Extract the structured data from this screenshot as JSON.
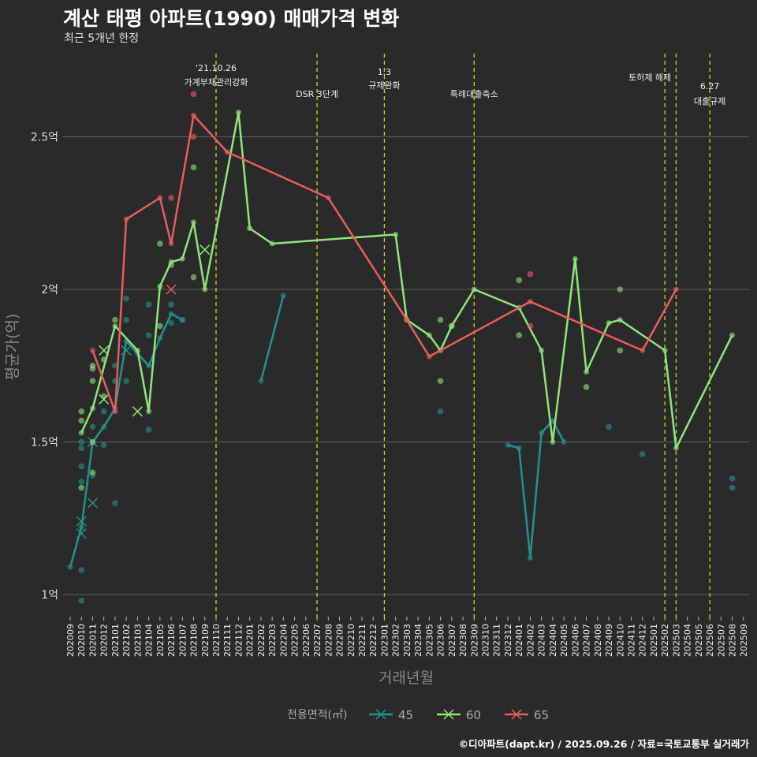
{
  "title": "계산 태평 아파트(1990) 매매가격 변화",
  "subtitle": "최근 5개년 한정",
  "caption": "©디아파트(dapt.kr) / 2025.09.26 / 자료=국토교통부 실거래가",
  "colors": {
    "45": "#23928c",
    "60": "#8ee57a",
    "65": "#ea5c5c",
    "grid": "#5e5e5e",
    "event": "#d4d41e",
    "background": "#2b2a2a"
  },
  "chart_data": {
    "type": "line",
    "title": "계산 태평 아파트(1990) 매매가격 변화",
    "xlabel": "거래년월",
    "ylabel": "평균가(억)",
    "ylim": [
      0.9,
      2.68
    ],
    "yticks": [
      {
        "v": 1,
        "label": "1억"
      },
      {
        "v": 1.5,
        "label": "1.5억"
      },
      {
        "v": 2,
        "label": "2억"
      },
      {
        "v": 2.5,
        "label": "2.5억"
      }
    ],
    "x": [
      "202009",
      "202010",
      "202011",
      "202012",
      "202101",
      "202102",
      "202103",
      "202104",
      "202105",
      "202106",
      "202107",
      "202108",
      "202109",
      "202110",
      "202111",
      "202112",
      "202201",
      "202202",
      "202203",
      "202204",
      "202205",
      "202206",
      "202207",
      "202208",
      "202209",
      "202210",
      "202211",
      "202212",
      "202301",
      "202302",
      "202303",
      "202304",
      "202305",
      "202306",
      "202307",
      "202308",
      "202309",
      "202310",
      "202311",
      "202312",
      "202401",
      "202402",
      "202403",
      "202404",
      "202405",
      "202406",
      "202407",
      "202408",
      "202409",
      "202410",
      "202411",
      "202412",
      "202501",
      "202502",
      "202503",
      "202504",
      "202505",
      "202506",
      "202507",
      "202508",
      "202509"
    ],
    "legend": {
      "title": "전용면적(㎡)",
      "position": "bottom"
    },
    "events": [
      {
        "month": "202110",
        "lines": [
          "'21.10.26",
          "가계부채관리강화"
        ]
      },
      {
        "month": "202207",
        "lines": [
          "DSR 3단계"
        ]
      },
      {
        "month": "202301",
        "lines": [
          "1.3",
          "규제완화"
        ]
      },
      {
        "month": "202309",
        "lines": [
          "특례대출축소"
        ]
      },
      {
        "month": "202502",
        "lines": [
          "토허제 해제"
        ]
      },
      {
        "month": "202503",
        "lines": []
      },
      {
        "month": "202506",
        "lines": [
          "6.27",
          "대출규제"
        ]
      }
    ],
    "series": [
      {
        "name": "45",
        "segments": [
          [
            [
              0,
              1.09
            ],
            [
              1,
              1.22
            ],
            [
              2,
              1.5
            ],
            [
              3,
              1.55
            ],
            [
              4,
              1.61
            ],
            [
              5,
              1.83
            ],
            [
              6,
              1.79
            ],
            [
              7,
              1.75
            ],
            [
              8,
              1.84
            ],
            [
              9,
              1.92
            ],
            [
              10,
              1.9
            ]
          ],
          [
            [
              17,
              1.7
            ],
            [
              19,
              1.98
            ]
          ],
          [
            [
              39,
              1.49
            ],
            [
              40,
              1.48
            ],
            [
              41,
              1.12
            ],
            [
              42,
              1.53
            ],
            [
              43,
              1.57
            ],
            [
              44,
              1.5
            ]
          ]
        ],
        "points": [
          [
            1,
            0.98
          ],
          [
            1,
            1.08
          ],
          [
            1,
            1.37
          ],
          [
            1,
            1.42
          ],
          [
            1,
            1.48
          ],
          [
            1,
            1.5
          ],
          [
            2,
            1.39
          ],
          [
            2,
            1.55
          ],
          [
            3,
            1.49
          ],
          [
            3,
            1.6
          ],
          [
            4,
            1.3
          ],
          [
            4,
            1.7
          ],
          [
            4,
            1.75
          ],
          [
            5,
            1.9
          ],
          [
            5,
            1.97
          ],
          [
            5,
            1.7
          ],
          [
            7,
            1.54
          ],
          [
            7,
            1.85
          ],
          [
            7,
            1.95
          ],
          [
            9,
            1.89
          ],
          [
            9,
            1.95
          ],
          [
            10,
            1.9
          ],
          [
            33,
            1.6
          ],
          [
            48,
            1.55
          ],
          [
            51,
            1.46
          ],
          [
            59,
            1.38
          ],
          [
            59,
            1.35
          ]
        ],
        "crosses": [
          [
            1,
            1.24
          ],
          [
            1,
            1.2
          ],
          [
            2,
            1.3
          ],
          [
            2,
            1.5
          ],
          [
            5,
            1.8
          ]
        ]
      },
      {
        "name": "60",
        "segments": [
          [
            [
              1,
              1.53
            ],
            [
              2,
              1.61
            ],
            [
              4,
              1.88
            ],
            [
              6,
              1.8
            ],
            [
              7,
              1.6
            ],
            [
              8,
              2.01
            ],
            [
              9,
              2.09
            ],
            [
              10,
              2.1
            ],
            [
              11,
              2.22
            ],
            [
              12,
              2.0
            ],
            [
              15,
              2.58
            ],
            [
              16,
              2.2
            ],
            [
              18,
              2.15
            ],
            [
              29,
              2.18
            ],
            [
              30,
              1.9
            ],
            [
              32,
              1.85
            ],
            [
              33,
              1.8
            ],
            [
              34,
              1.88
            ],
            [
              36,
              2.0
            ],
            [
              40,
              1.94
            ],
            [
              42,
              1.8
            ],
            [
              43,
              1.5
            ],
            [
              45,
              2.1
            ],
            [
              46,
              1.73
            ],
            [
              48,
              1.89
            ],
            [
              49,
              1.9
            ],
            [
              53,
              1.8
            ],
            [
              54,
              1.48
            ],
            [
              59,
              1.85
            ]
          ]
        ],
        "points": [
          [
            1,
            1.57
          ],
          [
            1,
            1.6
          ],
          [
            1,
            1.35
          ],
          [
            2,
            1.4
          ],
          [
            2,
            1.5
          ],
          [
            2,
            1.7
          ],
          [
            2,
            1.74
          ],
          [
            2,
            1.75
          ],
          [
            3,
            1.65
          ],
          [
            3,
            1.77
          ],
          [
            4,
            1.9
          ],
          [
            8,
            2.15
          ],
          [
            8,
            1.88
          ],
          [
            9,
            2.08
          ],
          [
            11,
            2.4
          ],
          [
            11,
            2.04
          ],
          [
            33,
            1.9
          ],
          [
            33,
            1.7
          ],
          [
            34,
            1.88
          ],
          [
            40,
            2.03
          ],
          [
            40,
            1.85
          ],
          [
            46,
            1.68
          ],
          [
            49,
            2.0
          ],
          [
            49,
            1.8
          ]
        ],
        "crosses": [
          [
            3,
            1.8
          ],
          [
            3,
            1.64
          ],
          [
            6,
            1.6
          ],
          [
            12,
            2.13
          ]
        ]
      },
      {
        "name": "65",
        "segments": [
          [
            [
              2,
              1.8
            ],
            [
              4,
              1.6
            ],
            [
              5,
              2.23
            ],
            [
              8,
              2.3
            ],
            [
              9,
              2.15
            ],
            [
              11,
              2.57
            ],
            [
              14,
              2.45
            ],
            [
              23,
              2.3
            ],
            [
              30,
              1.9
            ],
            [
              32,
              1.78
            ],
            [
              41,
              1.96
            ],
            [
              51,
              1.8
            ],
            [
              54,
              2.0
            ]
          ]
        ],
        "points": [
          [
            9,
            2.3
          ],
          [
            11,
            2.64
          ],
          [
            11,
            2.5
          ],
          [
            41,
            2.05
          ],
          [
            41,
            1.88
          ]
        ],
        "crosses": [
          [
            9,
            2.0
          ]
        ]
      }
    ]
  }
}
